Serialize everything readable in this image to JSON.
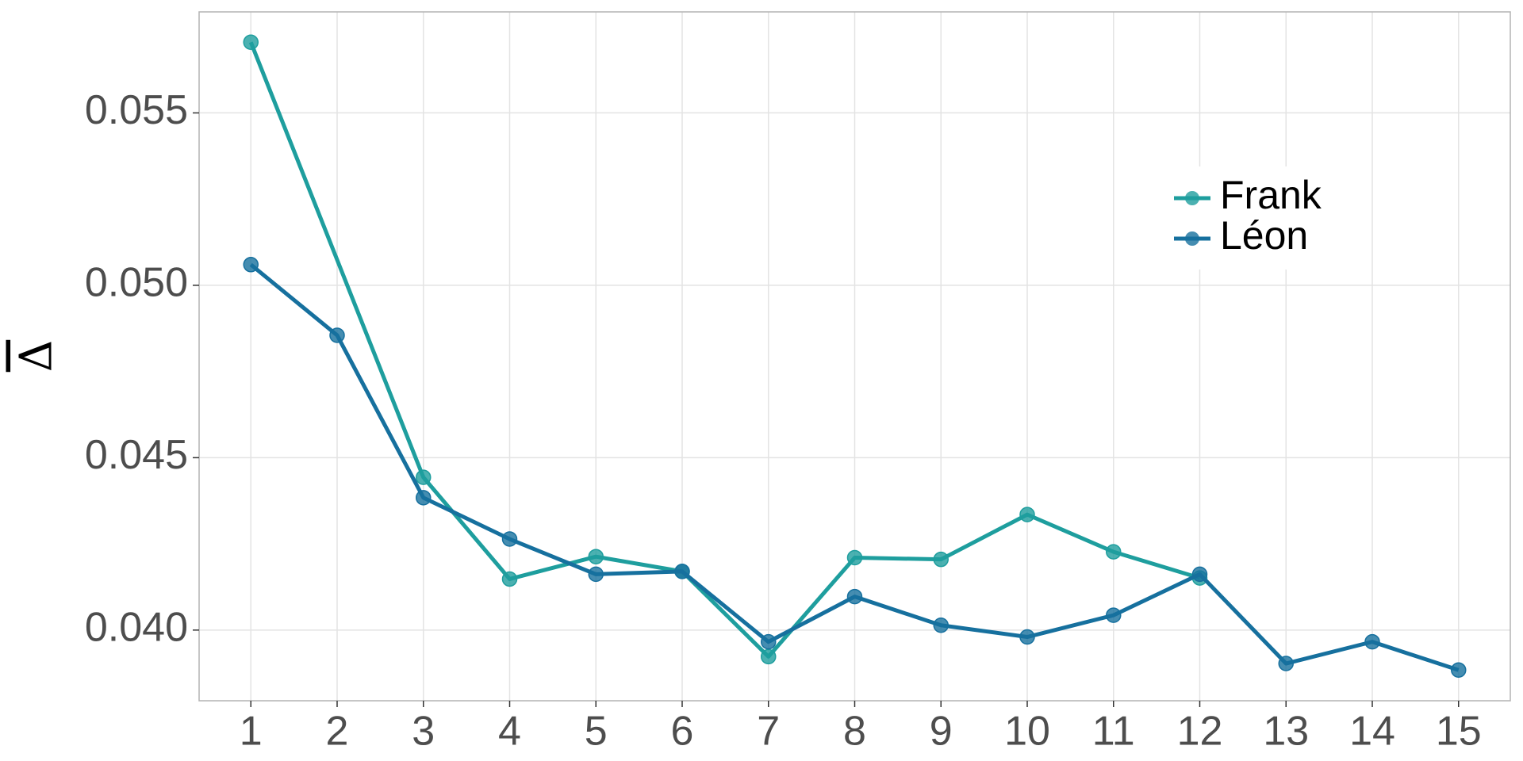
{
  "chart_data": {
    "type": "line",
    "y_label": "Δ",
    "series": [
      {
        "name": "Frank",
        "color": "#1e9e9e",
        "x": [
          1,
          3,
          4,
          5,
          6,
          7,
          8,
          9,
          10,
          11,
          12
        ],
        "values": [
          0.05705,
          0.04443,
          0.04148,
          0.04213,
          0.0417,
          0.03923,
          0.0421,
          0.04205,
          0.04335,
          0.04227,
          0.04151
        ]
      },
      {
        "name": "Léon",
        "color": "#16709e",
        "x": [
          1,
          2,
          3,
          4,
          5,
          6,
          7,
          8,
          9,
          10,
          11,
          12,
          13,
          14,
          15
        ],
        "values": [
          0.0506,
          0.04855,
          0.04384,
          0.04264,
          0.04162,
          0.0417,
          0.03966,
          0.04097,
          0.04014,
          0.0398,
          0.04043,
          0.04162,
          0.03903,
          0.03966,
          0.03884
        ]
      }
    ],
    "xlim": [
      0.4,
      15.6
    ],
    "xticks": [
      1,
      2,
      3,
      4,
      5,
      6,
      7,
      8,
      9,
      10,
      11,
      12,
      13,
      14,
      15
    ],
    "ylim": [
      0.03795,
      0.05793
    ],
    "yticks": [
      {
        "value": 0.04,
        "label": "0.040"
      },
      {
        "value": 0.045,
        "label": "0.045"
      },
      {
        "value": 0.05,
        "label": "0.050"
      },
      {
        "value": 0.055,
        "label": "0.055"
      }
    ],
    "grid": true,
    "legend": "upper right"
  }
}
